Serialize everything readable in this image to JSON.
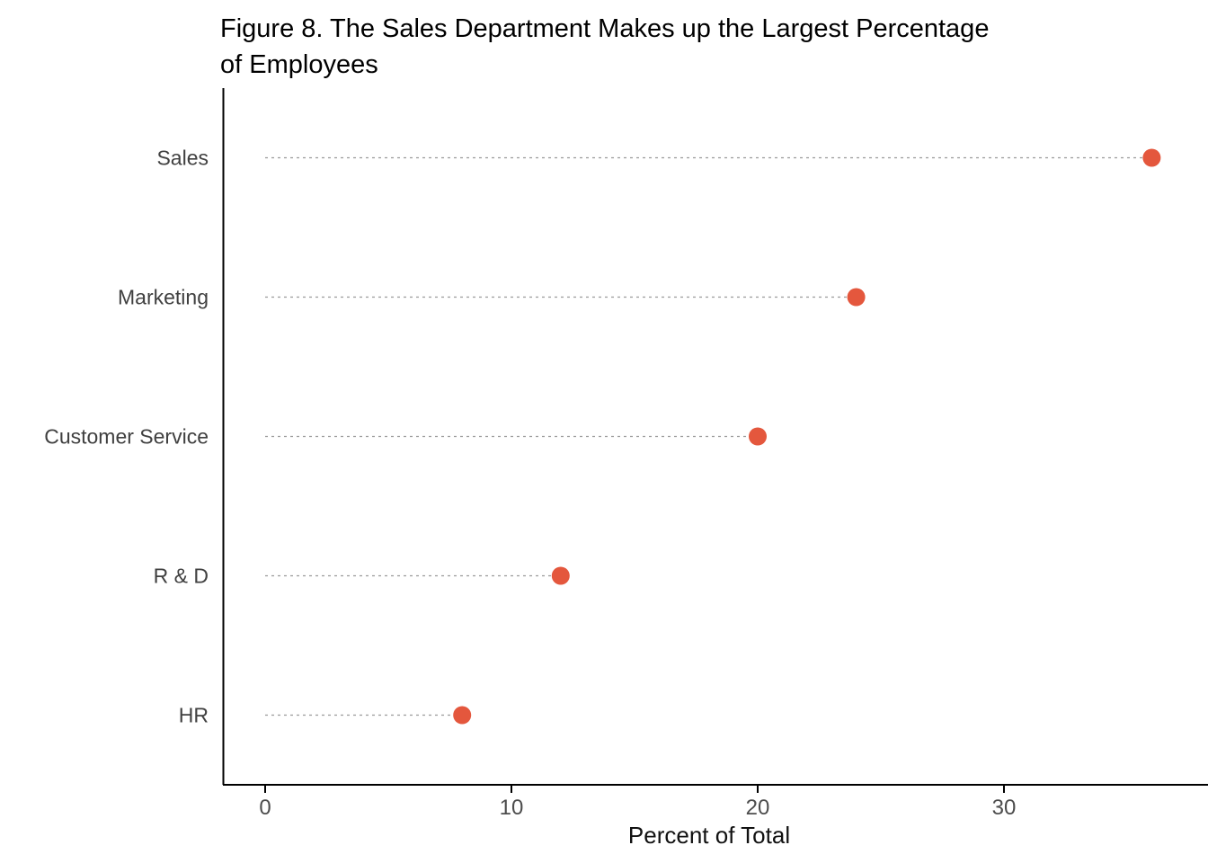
{
  "header": {
    "title_lines": [
      "Figure 8. The Sales Department Makes up the Largest Percentage",
      "of Employees"
    ]
  },
  "chart_data": {
    "type": "scatter",
    "variant": "lollipop-dot-plot",
    "title": "Figure 8. The Sales Department Makes up the Largest Percentage of Employees",
    "categories": [
      "Sales",
      "Marketing",
      "Customer Service",
      "R & D",
      "HR"
    ],
    "values": [
      36,
      24,
      20,
      12,
      8
    ],
    "xlabel": "Percent of Total",
    "ylabel": "",
    "xlim": [
      0,
      38
    ],
    "xticks": [
      0,
      10,
      20,
      30
    ],
    "grid": false,
    "legend": "none",
    "colors": {
      "dot": "#E4573D",
      "stem": "#9a9a9a",
      "axis": "#000000",
      "category_label": "#404040",
      "tick_label": "#4d4d4d"
    }
  }
}
